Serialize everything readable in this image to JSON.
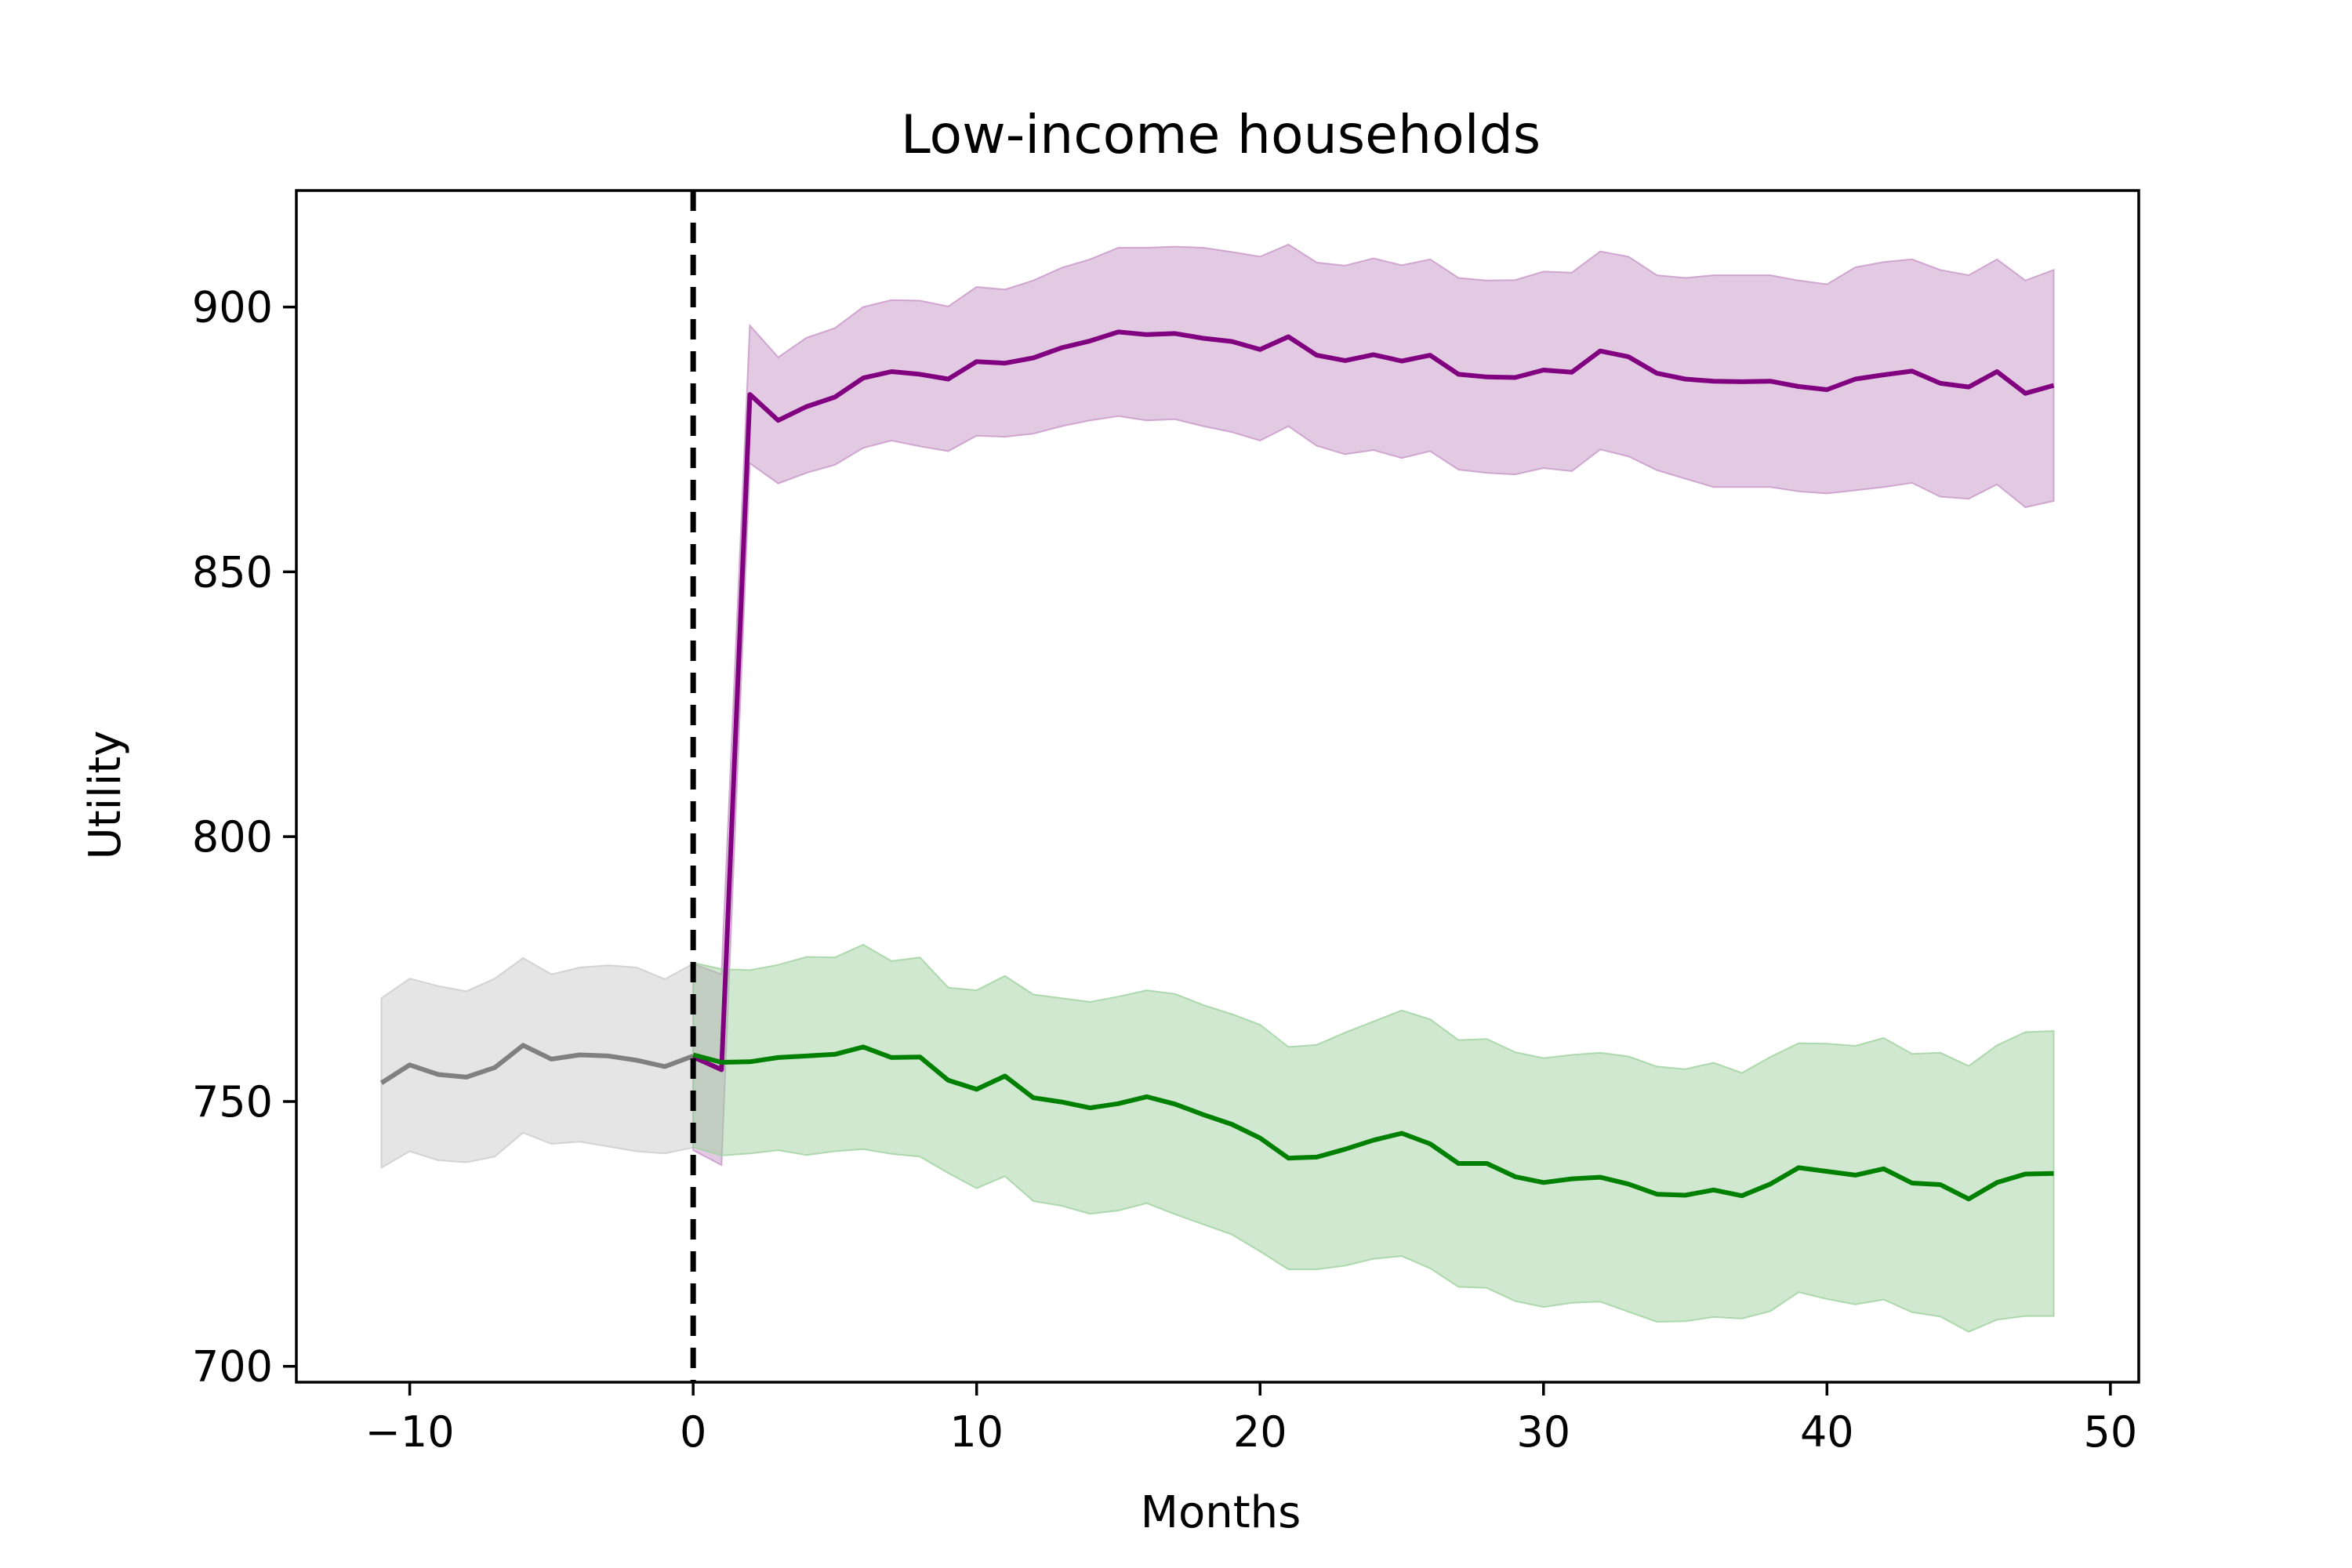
{
  "chart_data": {
    "type": "line",
    "title": "Low-income households",
    "xlabel": "Months",
    "ylabel": "Utility",
    "xlim": [
      -14,
      51
    ],
    "ylim": [
      697,
      922
    ],
    "xticks": [
      -10,
      0,
      10,
      20,
      30,
      40,
      50
    ],
    "yticks": [
      700,
      750,
      800,
      850,
      900
    ],
    "xtick_labels": [
      "−10",
      "0",
      "10",
      "20",
      "30",
      "40",
      "50"
    ],
    "ytick_labels": [
      "700",
      "750",
      "800",
      "850",
      "900"
    ],
    "grid": false,
    "legend": "none",
    "reference_line": {
      "x": 0,
      "style": "dashed",
      "color": "#000000"
    },
    "series": [
      {
        "color": "#808080",
        "band_color": "#cccccc",
        "x": [
          -11,
          -10,
          -9,
          -8,
          -7,
          -6,
          -5,
          -4,
          -3,
          -2,
          -1,
          0
        ],
        "y": [
          753.5,
          756.9,
          755.1,
          754.6,
          756.4,
          760.6,
          758.0,
          758.8,
          758.6,
          757.8,
          756.6,
          758.6
        ],
        "upper": [
          769.5,
          773.2,
          771.8,
          770.8,
          773.2,
          777.1,
          774.0,
          775.3,
          775.7,
          775.3,
          773.1,
          776.0
        ],
        "lower": [
          737.5,
          740.6,
          738.9,
          738.5,
          739.6,
          744.1,
          742.0,
          742.4,
          741.5,
          740.6,
          740.2,
          741.3
        ]
      },
      {
        "color": "#800080",
        "band_color": "#c896c8",
        "x": [
          0,
          1,
          2,
          3,
          4,
          5,
          6,
          7,
          8,
          9,
          10,
          11,
          12,
          13,
          14,
          15,
          16,
          17,
          18,
          19,
          20,
          21,
          22,
          23,
          24,
          25,
          26,
          27,
          28,
          29,
          30,
          31,
          32,
          33,
          34,
          35,
          36,
          37,
          38,
          39,
          40,
          41,
          42,
          43,
          44,
          45,
          46,
          47,
          48
        ],
        "y": [
          758.4,
          756.0,
          883.5,
          878.6,
          881.2,
          883.0,
          886.6,
          887.8,
          887.3,
          886.4,
          889.7,
          889.4,
          890.4,
          892.3,
          893.6,
          895.3,
          894.8,
          895.0,
          894.1,
          893.5,
          892.0,
          894.4,
          890.9,
          889.9,
          891.0,
          889.8,
          890.9,
          887.3,
          886.8,
          886.7,
          888.1,
          887.7,
          891.7,
          890.6,
          887.5,
          886.4,
          886.0,
          885.9,
          886.0,
          885.0,
          884.4,
          886.4,
          887.2,
          887.9,
          885.6,
          884.9,
          887.8,
          883.7,
          885.2
        ],
        "upper": [
          776.0,
          774.0,
          896.5,
          890.5,
          894.2,
          896.0,
          900.0,
          901.3,
          901.2,
          900.1,
          903.8,
          903.3,
          905.0,
          907.4,
          909.0,
          911.2,
          911.2,
          911.4,
          911.2,
          910.4,
          909.5,
          911.8,
          908.4,
          907.8,
          909.2,
          907.9,
          909.0,
          905.5,
          905.0,
          905.1,
          906.7,
          906.5,
          910.5,
          909.5,
          906.0,
          905.5,
          906.0,
          906.0,
          906.0,
          905.0,
          904.3,
          907.5,
          908.5,
          909.0,
          907.0,
          906.0,
          909.0,
          905.0,
          907.0
        ],
        "lower": [
          740.8,
          738.0,
          870.5,
          866.7,
          868.7,
          870.2,
          873.4,
          874.8,
          873.7,
          872.8,
          875.7,
          875.5,
          876.1,
          877.5,
          878.6,
          879.4,
          878.6,
          878.8,
          877.5,
          876.4,
          874.8,
          877.5,
          873.8,
          872.2,
          873.0,
          871.5,
          872.8,
          869.3,
          868.7,
          868.4,
          869.6,
          869.0,
          873.1,
          871.8,
          869.2,
          867.6,
          866.0,
          866.0,
          866.0,
          865.2,
          864.8,
          865.4,
          866.0,
          866.8,
          864.2,
          863.8,
          866.5,
          862.2,
          863.4
        ]
      },
      {
        "color": "#008000",
        "band_color": "#9fd29f",
        "x": [
          0,
          1,
          2,
          3,
          4,
          5,
          6,
          7,
          8,
          9,
          10,
          11,
          12,
          13,
          14,
          15,
          16,
          17,
          18,
          19,
          20,
          21,
          22,
          23,
          24,
          25,
          26,
          27,
          28,
          29,
          30,
          31,
          32,
          33,
          34,
          35,
          36,
          37,
          38,
          39,
          40,
          41,
          42,
          43,
          44,
          45,
          46,
          47,
          48
        ],
        "y": [
          758.8,
          757.4,
          757.5,
          758.3,
          758.6,
          758.9,
          760.3,
          758.3,
          758.4,
          754.0,
          752.3,
          754.8,
          750.7,
          749.9,
          748.8,
          749.6,
          750.9,
          749.5,
          747.5,
          745.7,
          743.1,
          739.3,
          739.5,
          741.0,
          742.7,
          744.0,
          742.0,
          738.3,
          738.3,
          735.8,
          734.7,
          735.4,
          735.7,
          734.4,
          732.5,
          732.3,
          733.3,
          732.2,
          734.4,
          737.5,
          736.8,
          736.1,
          737.3,
          734.6,
          734.3,
          731.6,
          734.7,
          736.3,
          736.4
        ],
        "upper": [
          776.2,
          775.0,
          774.8,
          775.8,
          777.3,
          777.2,
          779.6,
          776.5,
          777.2,
          771.5,
          771.0,
          773.7,
          770.2,
          769.5,
          768.8,
          769.8,
          771.0,
          770.3,
          768.2,
          766.5,
          764.5,
          760.3,
          760.7,
          763.0,
          765.1,
          767.2,
          765.5,
          761.6,
          761.8,
          759.3,
          758.2,
          758.8,
          759.2,
          758.5,
          756.6,
          756.1,
          757.3,
          755.4,
          758.4,
          761.0,
          760.9,
          760.5,
          762.0,
          759.0,
          759.2,
          756.7,
          760.6,
          763.1,
          763.3
        ],
        "lower": [
          741.4,
          739.8,
          740.2,
          740.8,
          739.9,
          740.6,
          741.0,
          740.1,
          739.6,
          736.5,
          733.6,
          735.9,
          731.2,
          730.3,
          728.8,
          729.4,
          730.8,
          728.7,
          726.8,
          724.9,
          721.7,
          718.3,
          718.3,
          719.0,
          720.3,
          720.8,
          718.5,
          715.0,
          714.8,
          712.3,
          711.2,
          712.0,
          712.2,
          710.3,
          708.4,
          708.5,
          709.3,
          709.0,
          710.4,
          714.0,
          712.7,
          711.7,
          712.6,
          710.2,
          709.4,
          706.5,
          708.8,
          709.5,
          709.5
        ]
      }
    ]
  }
}
